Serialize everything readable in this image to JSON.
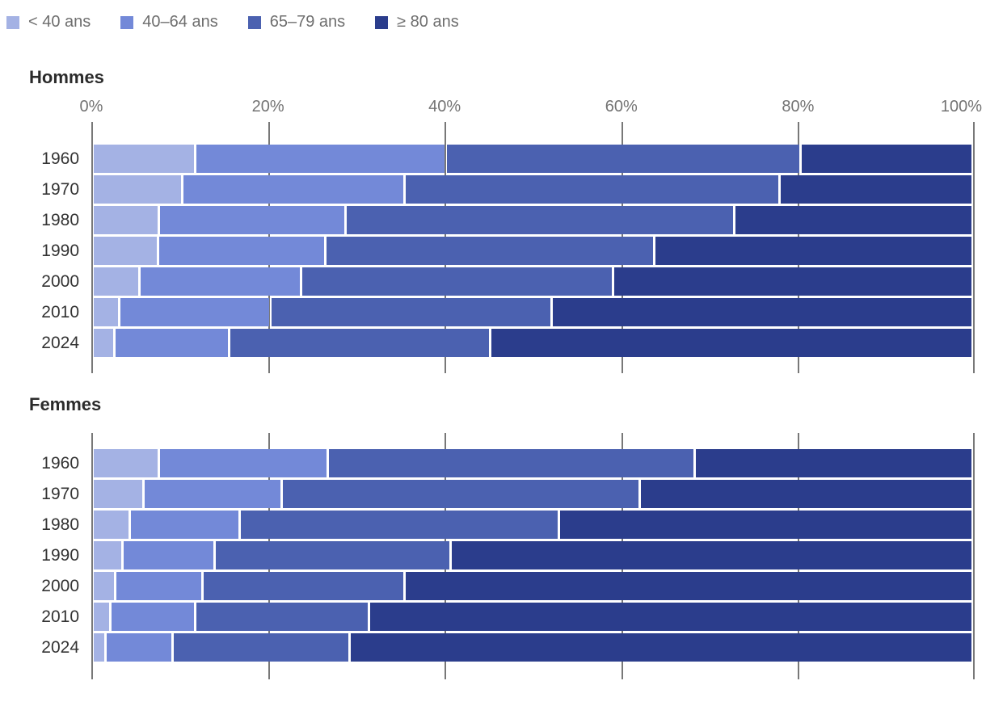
{
  "chart_data": {
    "type": "bar",
    "orientation": "horizontal",
    "stacked": true,
    "unit": "%",
    "xlim": [
      0,
      100
    ],
    "grid": true,
    "legend_position": "top",
    "x_ticks": [
      "0%",
      "20%",
      "40%",
      "60%",
      "80%",
      "100%"
    ],
    "categories": [
      "1960",
      "1970",
      "1980",
      "1990",
      "2000",
      "2010",
      "2024"
    ],
    "age_groups": [
      "< 40 ans",
      "40–64 ans",
      "65–79 ans",
      "≥ 80 ans"
    ],
    "colors": [
      "#a4b2e4",
      "#7389d8",
      "#4b61b0",
      "#2b3d8c"
    ],
    "panels": [
      {
        "title": "Hommes",
        "series": [
          {
            "name": "< 40 ans",
            "values": [
              11.5,
              10.0,
              7.3,
              7.2,
              5.1,
              2.8,
              2.2
            ]
          },
          {
            "name": "40–64 ans",
            "values": [
              28.5,
              25.3,
              21.2,
              19.0,
              18.3,
              17.1,
              12.9
            ]
          },
          {
            "name": "65–79 ans",
            "values": [
              40.5,
              42.8,
              44.4,
              37.5,
              35.6,
              32.0,
              29.7
            ]
          },
          {
            "name": "≥ 80 ans",
            "values": [
              19.5,
              21.9,
              27.1,
              36.3,
              41.0,
              48.1,
              55.2
            ]
          }
        ]
      },
      {
        "title": "Femmes",
        "series": [
          {
            "name": "< 40 ans",
            "values": [
              7.3,
              5.6,
              4.0,
              3.2,
              2.3,
              1.8,
              1.2
            ]
          },
          {
            "name": "40–64 ans",
            "values": [
              19.2,
              15.6,
              12.3,
              10.3,
              9.8,
              9.4,
              7.4
            ]
          },
          {
            "name": "65–79 ans",
            "values": [
              41.8,
              40.8,
              36.4,
              26.8,
              22.9,
              19.7,
              20.1
            ]
          },
          {
            "name": "≥ 80 ans",
            "values": [
              31.7,
              38.0,
              47.3,
              59.7,
              65.0,
              69.1,
              71.3
            ]
          }
        ]
      }
    ]
  }
}
